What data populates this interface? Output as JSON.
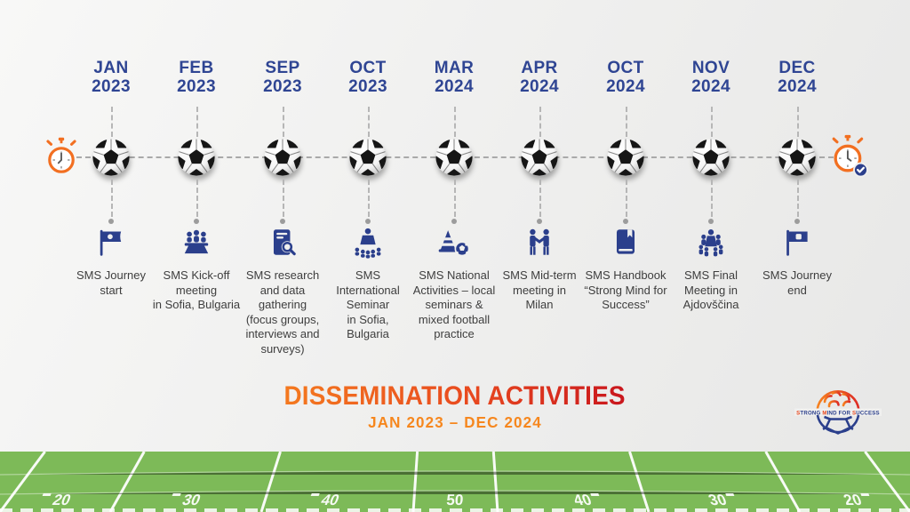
{
  "title": {
    "text": "DISSEMINATION ACTIVITIES",
    "subtitle": "JAN 2023 – DEC 2024"
  },
  "colors": {
    "date_blue": "#2F4593",
    "icon_blue": "#2B3F8C",
    "title_orange": "#F4791F",
    "title_red": "#C9161D",
    "subtitle_orange": "#F6871E",
    "field_green": "#7DBA58"
  },
  "timeline": {
    "start_marker": "stopwatch",
    "end_marker": "stopwatch-done",
    "items": [
      {
        "date": "JAN\n2023",
        "icon": "flag-start-icon",
        "label": "SMS Journey\nstart"
      },
      {
        "date": "FEB\n2023",
        "icon": "kickoff-meeting-icon",
        "label": "SMS Kick-off\nmeeting\nin Sofia, Bulgaria"
      },
      {
        "date": "SEP\n2023",
        "icon": "research-icon",
        "label": "SMS research\nand data\ngathering\n(focus groups,\ninterviews and\nsurveys)"
      },
      {
        "date": "OCT\n2023",
        "icon": "seminar-icon",
        "label": "SMS\nInternational\nSeminar\nin Sofia,\nBulgaria"
      },
      {
        "date": "MAR\n2024",
        "icon": "cone-football-icon",
        "label": "SMS National\nActivities – local\nseminars &\nmixed football\npractice"
      },
      {
        "date": "APR\n2024",
        "icon": "handshake-icon",
        "label": "SMS Mid-term\nmeeting in\nMilan"
      },
      {
        "date": "OCT\n2024",
        "icon": "handbook-icon",
        "label": "SMS Handbook\n“Strong Mind for\nSuccess”"
      },
      {
        "date": "NOV\n2024",
        "icon": "final-meeting-icon",
        "label": "SMS Final\nMeeting in\nAjdovščina"
      },
      {
        "date": "DEC\n2024",
        "icon": "flag-end-icon",
        "label": "SMS Journey\nend"
      }
    ]
  },
  "logo": {
    "text": "STRONG MIND FOR SUCCESS",
    "text_parts": [
      "S",
      "TRONG ",
      "M",
      "IND FOR ",
      "S",
      "UCCESS"
    ]
  },
  "field": {
    "numbers": [
      "20",
      "30",
      "40",
      "50",
      "40",
      "30",
      "20"
    ]
  }
}
